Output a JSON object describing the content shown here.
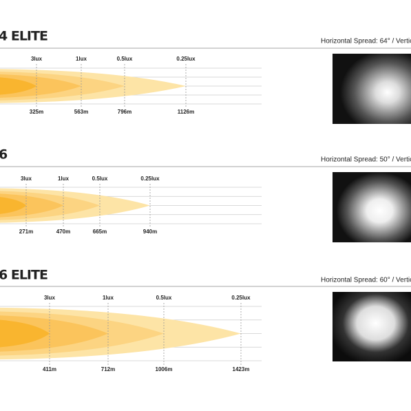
{
  "panels": [
    {
      "title": "4 ELITE",
      "spread": "Horizontal Spread: 64°  /  Vertic",
      "labels": [
        {
          "lux": "3lux",
          "distance": "325m"
        },
        {
          "lux": "1lux",
          "distance": "563m"
        },
        {
          "lux": "0.5lux",
          "distance": "796m"
        },
        {
          "lux": "0.25lux",
          "distance": "1126m"
        }
      ]
    },
    {
      "title": "6",
      "spread": "Horizontal Spread: 50°  /  Vertic",
      "labels": [
        {
          "lux": "3lux",
          "distance": "271m"
        },
        {
          "lux": "1lux",
          "distance": "470m"
        },
        {
          "lux": "0.5lux",
          "distance": "665m"
        },
        {
          "lux": "0.25lux",
          "distance": "940m"
        }
      ]
    },
    {
      "title": "6 ELITE",
      "spread": "Horizontal Spread: 60°  /  Vertic",
      "labels": [
        {
          "lux": "3lux",
          "distance": "411m"
        },
        {
          "lux": "1lux",
          "distance": "712m"
        },
        {
          "lux": "0.5lux",
          "distance": "1006m"
        },
        {
          "lux": "0.25lux",
          "distance": "1423m"
        }
      ]
    }
  ]
}
